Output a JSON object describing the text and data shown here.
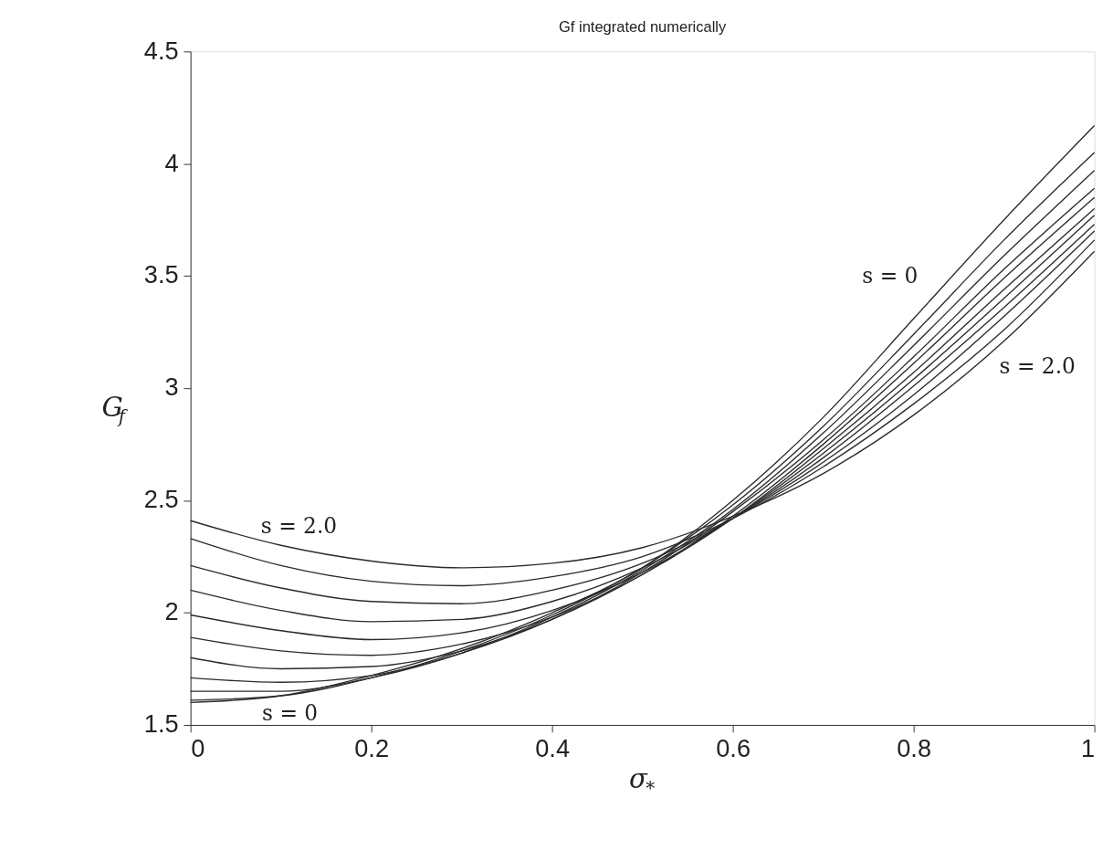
{
  "chart_data": {
    "type": "line",
    "title": "Gf integrated numerically",
    "xlabel": "σ$_{*}$",
    "ylabel": "G$_{f}$",
    "x": [
      0,
      0.1,
      0.2,
      0.3,
      0.4,
      0.5,
      0.6,
      0.7,
      0.8,
      0.9,
      1.0
    ],
    "xlim": [
      0,
      1
    ],
    "xticks": [
      0,
      0.2,
      0.4,
      0.6,
      0.8,
      1
    ],
    "ylim": [
      1.5,
      4.5
    ],
    "yticks": [
      1.5,
      2,
      2.5,
      3,
      3.5,
      4,
      4.5
    ],
    "grid": false,
    "line_style": "solid",
    "marker": "none",
    "series": [
      {
        "color": "#2b2b2b",
        "values": [
          1.6,
          1.63,
          1.72,
          1.84,
          2.0,
          2.2,
          2.5,
          2.87,
          3.31,
          3.75,
          4.17
        ]
      },
      {
        "color": "#2b2b2b",
        "values": [
          1.61,
          1.63,
          1.71,
          1.83,
          1.99,
          2.2,
          2.48,
          2.83,
          3.24,
          3.66,
          4.05
        ]
      },
      {
        "color": "#2b2b2b",
        "values": [
          1.65,
          1.65,
          1.71,
          1.82,
          1.98,
          2.19,
          2.46,
          2.8,
          3.19,
          3.59,
          3.97
        ]
      },
      {
        "color": "#2b2b2b",
        "values": [
          1.71,
          1.69,
          1.72,
          1.82,
          1.97,
          2.18,
          2.45,
          2.77,
          3.14,
          3.53,
          3.89
        ]
      },
      {
        "color": "#2b2b2b",
        "values": [
          1.8,
          1.75,
          1.76,
          1.83,
          1.97,
          2.17,
          2.43,
          2.75,
          3.11,
          3.49,
          3.85
        ]
      },
      {
        "color": "#2b2b2b",
        "values": [
          1.89,
          1.83,
          1.81,
          1.86,
          1.98,
          2.17,
          2.42,
          2.73,
          3.07,
          3.44,
          3.8
        ]
      },
      {
        "color": "#2b2b2b",
        "values": [
          1.99,
          1.92,
          1.88,
          1.91,
          2.01,
          2.18,
          2.42,
          2.71,
          3.04,
          3.4,
          3.77
        ]
      },
      {
        "color": "#2b2b2b",
        "values": [
          2.1,
          2.01,
          1.96,
          1.97,
          2.05,
          2.2,
          2.42,
          2.69,
          3.01,
          3.36,
          3.73
        ]
      },
      {
        "color": "#2b2b2b",
        "values": [
          2.21,
          2.11,
          2.05,
          2.04,
          2.1,
          2.22,
          2.42,
          2.67,
          2.97,
          3.32,
          3.7
        ]
      },
      {
        "color": "#2b2b2b",
        "values": [
          2.33,
          2.21,
          2.14,
          2.12,
          2.16,
          2.25,
          2.42,
          2.65,
          2.93,
          3.26,
          3.66
        ]
      },
      {
        "color": "#2b2b2b",
        "values": [
          2.41,
          2.3,
          2.23,
          2.2,
          2.22,
          2.29,
          2.43,
          2.62,
          2.88,
          3.21,
          3.61
        ]
      }
    ],
    "annotations": [
      "s = 2.0",
      "s = 0",
      "s = 0",
      "s = 2.0"
    ]
  }
}
